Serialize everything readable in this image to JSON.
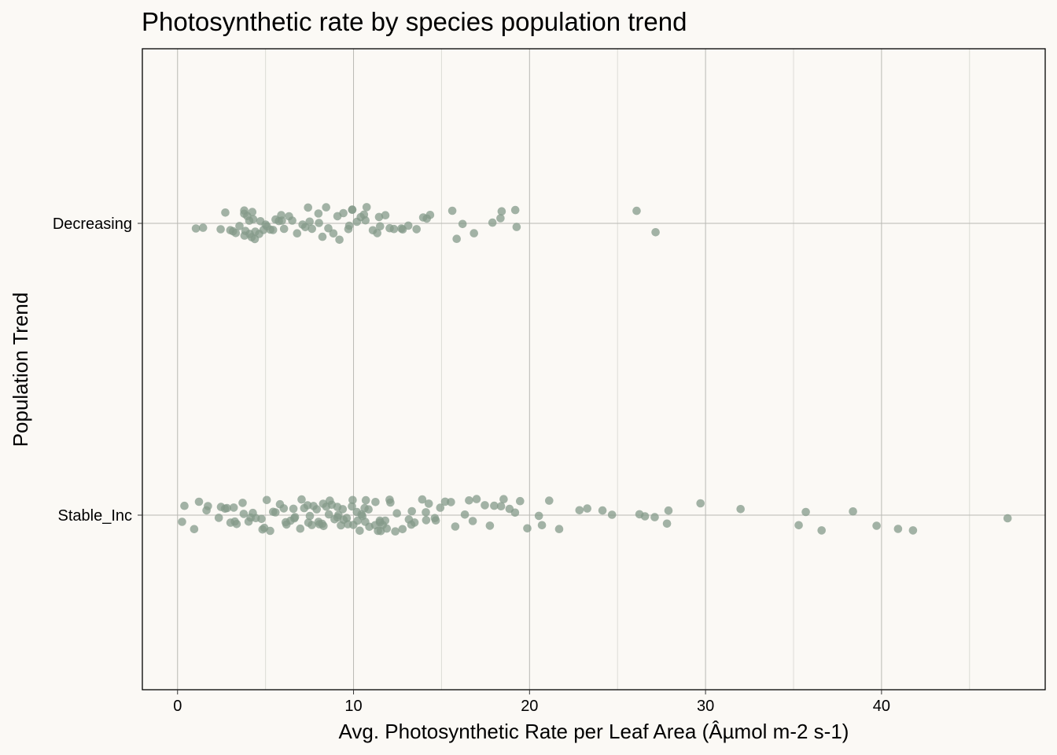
{
  "chart_data": {
    "type": "scatter",
    "title": "Photosynthetic rate by species population trend",
    "xlabel": "Avg. Photosynthetic Rate per Leaf Area (Âµmol m-2 s-1)",
    "ylabel": "Population Trend",
    "categories": [
      "Decreasing",
      "Stable_Inc"
    ],
    "x_ticks": [
      "0",
      "10",
      "20",
      "30",
      "40"
    ],
    "xlim": [
      -2,
      49.3
    ],
    "grid": true,
    "point_color": "#84998a",
    "series": [
      {
        "category": "Decreasing",
        "values": [
          1.1,
          1.3,
          2.4,
          2.6,
          2.9,
          3.2,
          3.4,
          3.6,
          3.7,
          3.7,
          3.8,
          3.9,
          4.0,
          4.1,
          4.1,
          4.2,
          4.3,
          4.3,
          4.4,
          4.5,
          4.6,
          4.7,
          4.9,
          5.0,
          5.2,
          5.3,
          5.5,
          5.6,
          5.8,
          5.9,
          6.0,
          6.2,
          6.4,
          6.6,
          6.8,
          7.0,
          7.2,
          7.4,
          7.5,
          7.7,
          7.9,
          8.0,
          8.2,
          8.4,
          8.6,
          8.8,
          9.0,
          9.2,
          9.4,
          9.6,
          9.7,
          9.8,
          10.0,
          10.1,
          10.3,
          10.5,
          10.7,
          10.8,
          11.0,
          11.2,
          11.4,
          11.6,
          11.8,
          12.0,
          12.3,
          12.6,
          12.9,
          13.2,
          13.6,
          13.9,
          14.2,
          14.4,
          15.6,
          15.8,
          16.1,
          16.9,
          17.9,
          18.3,
          18.5,
          19.3,
          19.3,
          26.2,
          27.1
        ]
      },
      {
        "category": "Stable_Inc",
        "values": [
          0.3,
          0.4,
          1.0,
          1.1,
          1.5,
          1.8,
          2.2,
          2.4,
          2.6,
          2.8,
          3.0,
          3.2,
          3.3,
          3.5,
          3.7,
          3.8,
          4.0,
          4.2,
          4.3,
          4.5,
          4.7,
          4.8,
          5.0,
          5.1,
          5.3,
          5.4,
          5.6,
          5.7,
          5.9,
          6.0,
          6.2,
          6.3,
          6.5,
          6.6,
          6.8,
          6.9,
          7.0,
          7.1,
          7.3,
          7.4,
          7.5,
          7.6,
          7.7,
          7.8,
          8.0,
          8.1,
          8.2,
          8.3,
          8.4,
          8.5,
          8.6,
          8.7,
          8.8,
          8.9,
          9.0,
          9.1,
          9.2,
          9.3,
          9.4,
          9.5,
          9.6,
          9.7,
          9.8,
          9.9,
          10.0,
          10.1,
          10.2,
          10.3,
          10.4,
          10.5,
          10.6,
          10.7,
          10.8,
          10.9,
          11.0,
          11.1,
          11.2,
          11.3,
          11.4,
          11.5,
          11.6,
          11.7,
          11.8,
          11.9,
          12.0,
          12.2,
          12.4,
          12.6,
          12.8,
          13.0,
          13.2,
          13.4,
          13.6,
          13.8,
          14.0,
          14.2,
          14.4,
          14.6,
          14.8,
          15.0,
          15.3,
          15.6,
          15.9,
          16.2,
          16.5,
          16.8,
          17.1,
          17.4,
          17.7,
          18.0,
          18.3,
          18.6,
          18.9,
          19.2,
          19.6,
          20.0,
          20.4,
          20.8,
          21.2,
          21.6,
          22.7,
          23.4,
          24.1,
          24.7,
          26.2,
          26.7,
          27.0,
          27.7,
          27.9,
          29.7,
          32.0,
          35.3,
          35.6,
          36.6,
          38.4,
          39.7,
          40.8,
          41.9,
          47.1
        ]
      }
    ]
  }
}
